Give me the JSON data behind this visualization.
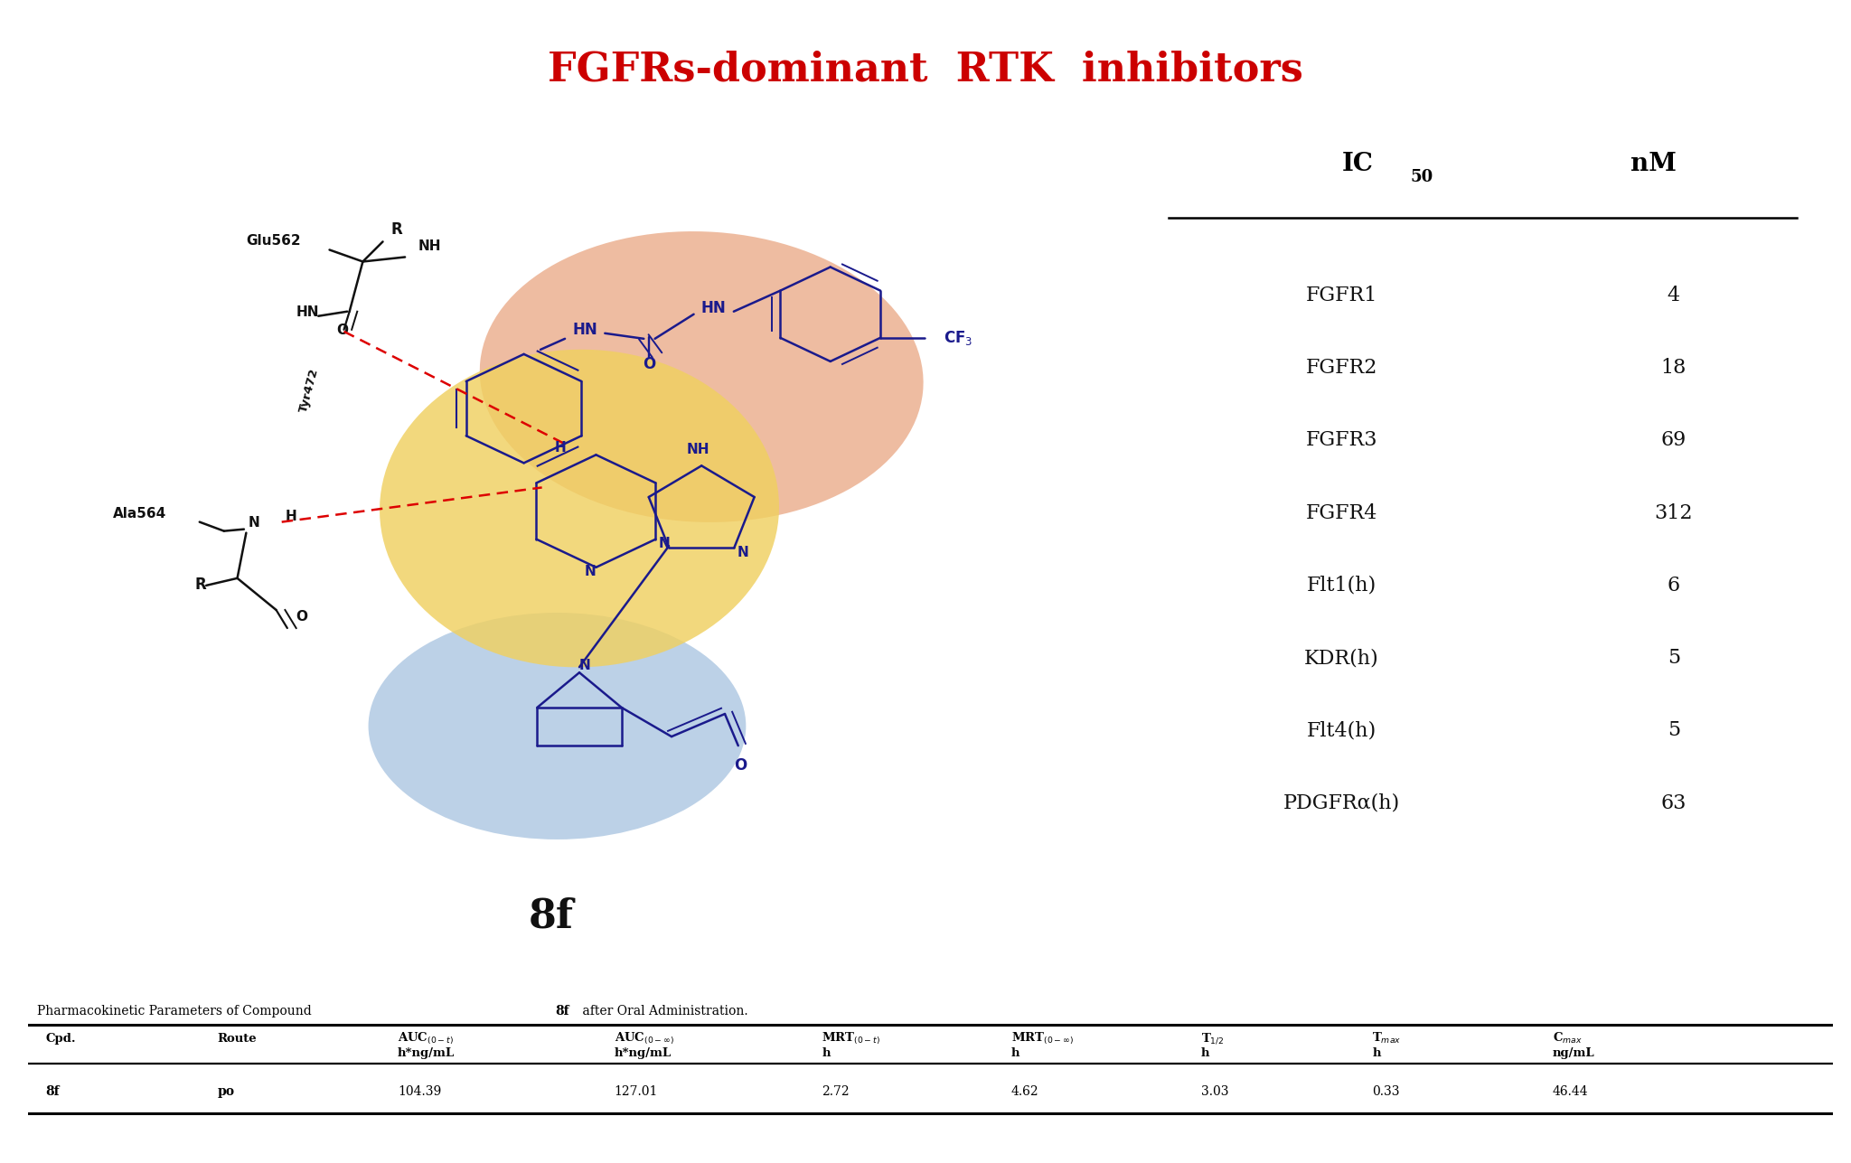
{
  "title": "FGFRs-dominant  RTK  inhibitors",
  "title_color": "#cc0000",
  "title_fontsize": 32,
  "ic50_rows": [
    [
      "FGFR1",
      "4"
    ],
    [
      "FGFR2",
      "18"
    ],
    [
      "FGFR3",
      "69"
    ],
    [
      "FGFR4",
      "312"
    ],
    [
      "Flt1(h)",
      "6"
    ],
    [
      "KDR(h)",
      "5"
    ],
    [
      "Flt4(h)",
      "5"
    ],
    [
      "PDGFRα(h)",
      "63"
    ]
  ],
  "pk_data": [
    "8f",
    "po",
    "104.39",
    "127.01",
    "2.72",
    "4.62",
    "3.03",
    "0.33",
    "46.44"
  ],
  "compound_label": "8f",
  "bg_color": "#ffffff",
  "orange_blob_color": "#e8a07a",
  "yellow_blob_color": "#f0d060",
  "blue_blob_color": "#a0bedd",
  "molecule_color": "#1a1a8c",
  "skeleton_color": "#111111",
  "red_dash_color": "#dd0000"
}
